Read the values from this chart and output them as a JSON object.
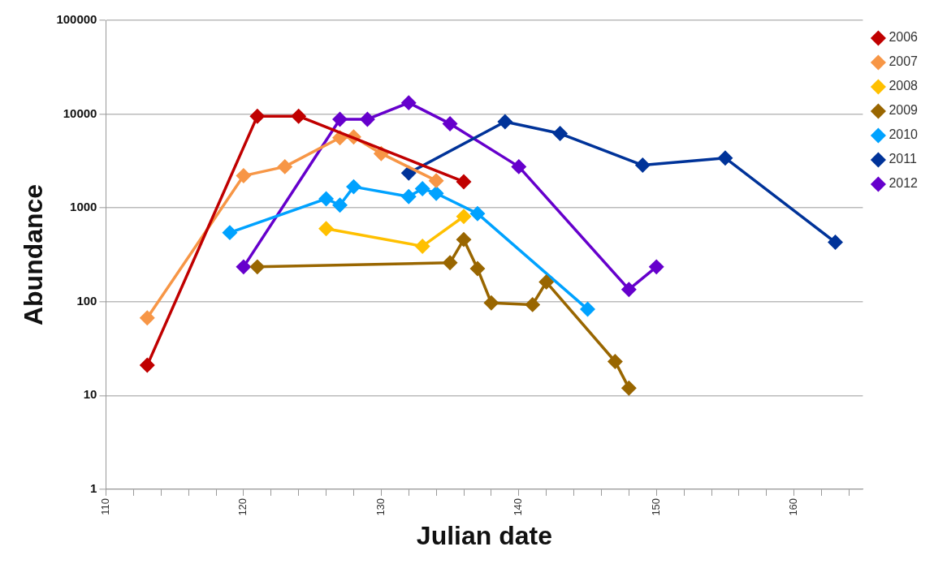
{
  "chart_data": {
    "type": "line",
    "xlabel": "Julian date",
    "ylabel": "Abundance",
    "log": "y",
    "grid": "y",
    "legend": "top right",
    "marker": "diamond",
    "line_style": "solid",
    "xlim": [
      110,
      165
    ],
    "xticks": [
      110,
      {
        "value": 112,
        "label": null
      },
      {
        "value": 114,
        "label": null
      },
      {
        "value": 116,
        "label": null
      },
      {
        "value": 118,
        "label": null
      },
      120,
      {
        "value": 122,
        "label": null
      },
      {
        "value": 124,
        "label": null
      },
      {
        "value": 126,
        "label": null
      },
      {
        "value": 128,
        "label": null
      },
      130,
      {
        "value": 132,
        "label": null
      },
      {
        "value": 134,
        "label": null
      },
      {
        "value": 136,
        "label": null
      },
      {
        "value": 138,
        "label": null
      },
      140,
      {
        "value": 142,
        "label": null
      },
      {
        "value": 144,
        "label": null
      },
      {
        "value": 146,
        "label": null
      },
      {
        "value": 148,
        "label": null
      },
      150,
      {
        "value": 152,
        "label": null
      },
      {
        "value": 154,
        "label": null
      },
      {
        "value": 156,
        "label": null
      },
      {
        "value": 158,
        "label": null
      },
      160,
      {
        "value": 162,
        "label": null
      },
      {
        "value": 164,
        "label": null
      }
    ],
    "ylim": [
      1,
      100000
    ],
    "yticks": [
      1,
      10,
      100,
      1000,
      10000,
      100000
    ],
    "series": [
      {
        "name": "2006",
        "color": "#c00000",
        "x": [
          113,
          121,
          124,
          136
        ],
        "values": [
          21,
          9500,
          9500,
          1900
        ]
      },
      {
        "name": "2007",
        "color": "#f79646",
        "x": [
          113,
          120,
          123,
          127,
          128,
          130,
          134
        ],
        "values": [
          67,
          2200,
          2750,
          5600,
          5700,
          3800,
          1950
        ]
      },
      {
        "name": "2008",
        "color": "#ffc000",
        "x": [
          126,
          133,
          136
        ],
        "values": [
          600,
          390,
          810
        ]
      },
      {
        "name": "2009",
        "color": "#996600",
        "x": [
          121,
          135,
          136,
          137,
          138,
          141,
          142,
          147,
          148
        ],
        "values": [
          235,
          260,
          460,
          225,
          97,
          93,
          162,
          23,
          12
        ]
      },
      {
        "name": "2010",
        "color": "#00a2ff",
        "x": [
          119,
          126,
          127,
          128,
          132,
          133,
          134,
          137,
          145
        ],
        "values": [
          545,
          1250,
          1070,
          1680,
          1320,
          1600,
          1430,
          870,
          83
        ]
      },
      {
        "name": "2011",
        "color": "#003399",
        "x": [
          132,
          139,
          143,
          149,
          155,
          163
        ],
        "values": [
          2350,
          8300,
          6200,
          2850,
          3400,
          430
        ]
      },
      {
        "name": "2012",
        "color": "#6600cc",
        "x": [
          120,
          127,
          129,
          132,
          135,
          140,
          148,
          150
        ],
        "values": [
          235,
          8800,
          8800,
          13200,
          7900,
          2750,
          135,
          235
        ]
      }
    ]
  }
}
